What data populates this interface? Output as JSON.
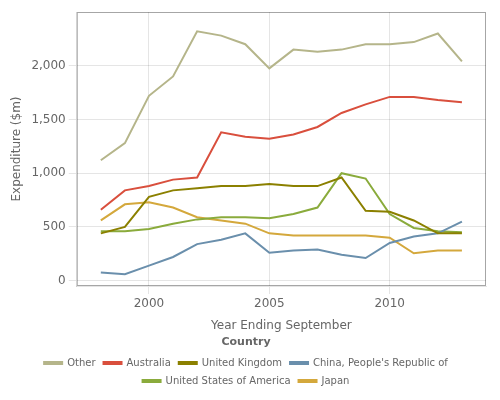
{
  "chart_data": {
    "type": "line",
    "x": [
      1998,
      1999,
      2000,
      2001,
      2002,
      2003,
      2004,
      2005,
      2006,
      2007,
      2008,
      2009,
      2010,
      2011,
      2012,
      2013
    ],
    "series": [
      {
        "name": "Other",
        "color": "#b5b58a",
        "values": [
          1120,
          1280,
          1720,
          1900,
          2320,
          2280,
          2200,
          1975,
          2150,
          2130,
          2150,
          2200,
          2200,
          2220,
          2300,
          2040
        ]
      },
      {
        "name": "Australia",
        "color": "#d94f3d",
        "values": [
          660,
          840,
          880,
          940,
          960,
          1380,
          1340,
          1320,
          1360,
          1430,
          1560,
          1640,
          1710,
          1710,
          1680,
          1660
        ]
      },
      {
        "name": "United Kingdom",
        "color": "#8b8000",
        "values": [
          440,
          500,
          780,
          840,
          860,
          880,
          880,
          900,
          880,
          880,
          960,
          650,
          640,
          560,
          440,
          440
        ]
      },
      {
        "name": "China, People's Republic of",
        "color": "#6a8fac",
        "values": [
          75,
          60,
          140,
          220,
          340,
          380,
          440,
          260,
          280,
          290,
          240,
          210,
          350,
          410,
          440,
          550
        ]
      },
      {
        "name": "United States of America",
        "color": "#8aab3c",
        "values": [
          460,
          460,
          480,
          530,
          570,
          590,
          590,
          580,
          620,
          680,
          1000,
          950,
          620,
          490,
          460,
          450
        ]
      },
      {
        "name": "Japan",
        "color": "#d4a83c",
        "values": [
          560,
          710,
          730,
          680,
          590,
          560,
          530,
          440,
          420,
          420,
          420,
          420,
          400,
          255,
          280,
          280
        ]
      }
    ],
    "xlabel": "Year Ending September",
    "ylabel": "Expenditure ($m)",
    "xlim": [
      1997,
      2014
    ],
    "xticks": [
      2000,
      2005,
      2010
    ],
    "ylim": [
      -50,
      2500
    ],
    "yticks": [
      0,
      500,
      {
        "value": 1000,
        "label": "1,000"
      },
      {
        "value": 1500,
        "label": "1,500"
      },
      {
        "value": 2000,
        "label": "2,000"
      }
    ],
    "grid": true,
    "legend": "bottom",
    "legend_title": "Country"
  }
}
